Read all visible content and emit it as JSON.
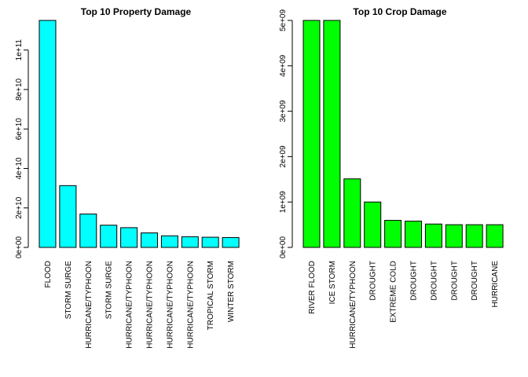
{
  "colors": {
    "panel_1_bars": "#00FFFF",
    "panel_2_bars": "#00FF00",
    "bar_outline": "#000000"
  },
  "chart_data": [
    {
      "type": "bar",
      "title": "Top 10 Property Damage",
      "xlabel": "",
      "ylabel": "",
      "grid": false,
      "legend": "none",
      "bar_color": "#00FFFF",
      "ylim": [
        0,
        115000000000
      ],
      "yticks": [
        0,
        20000000000,
        40000000000,
        60000000000,
        80000000000,
        100000000000
      ],
      "ytick_labels": [
        "0e+00",
        "2e+10",
        "4e+10",
        "6e+10",
        "8e+10",
        "1e+11"
      ],
      "categories": [
        "FLOOD",
        "STORM SURGE",
        "HURRICANE/TYPHOON",
        "STORM SURGE",
        "HURRICANE/TYPHOON",
        "HURRICANE/TYPHOON",
        "HURRICANE/TYPHOON",
        "HURRICANE/TYPHOON",
        "TROPICAL STORM",
        "WINTER STORM"
      ],
      "values": [
        115000000000,
        31300000000,
        16930000000,
        11260000000,
        10000000000,
        7350000000,
        5880000000,
        5420000000,
        5150000000,
        5000000000
      ]
    },
    {
      "type": "bar",
      "title": "Top 10 Crop Damage",
      "xlabel": "",
      "ylabel": "",
      "grid": false,
      "legend": "none",
      "bar_color": "#00FF00",
      "ylim": [
        0,
        5000000000
      ],
      "yticks": [
        0,
        1000000000,
        2000000000,
        3000000000,
        4000000000,
        5000000000
      ],
      "ytick_labels": [
        "0e+00",
        "1e+09",
        "2e+09",
        "3e+09",
        "4e+09",
        "5e+09"
      ],
      "categories": [
        "RIVER FLOOD",
        "ICE STORM",
        "HURRICANE/TYPHOON",
        "DROUGHT",
        "EXTREME COLD",
        "DROUGHT",
        "DROUGHT",
        "DROUGHT",
        "DROUGHT",
        "HURRICANE"
      ],
      "values": [
        5000000000,
        5000000000,
        1510000000,
        1000000000,
        596000000,
        578850000,
        515000000,
        500000000,
        500000000,
        500000000
      ]
    }
  ]
}
